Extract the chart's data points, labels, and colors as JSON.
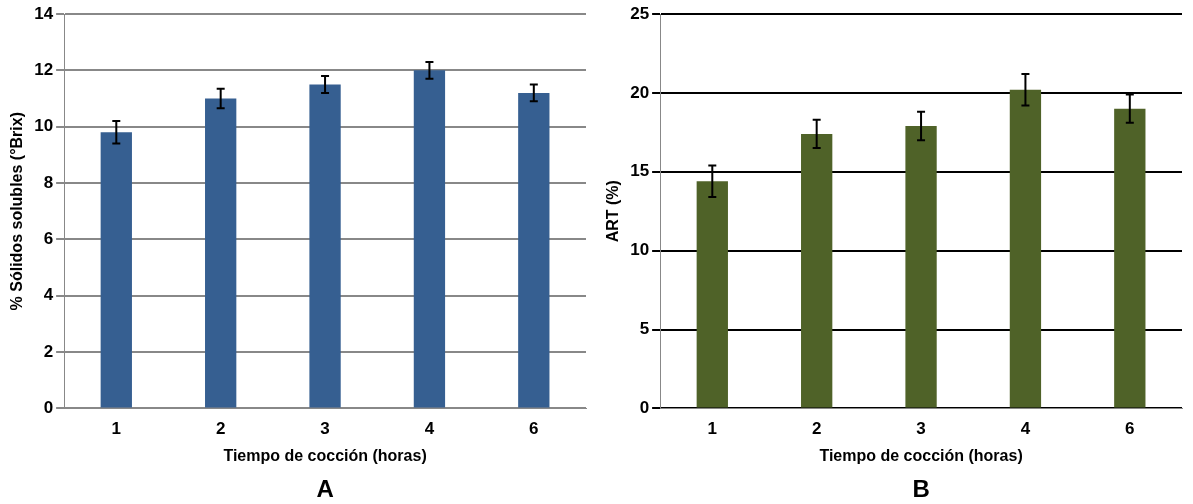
{
  "chart_data": [
    {
      "type": "bar",
      "xlabel": "Tiempo de cocción (horas)",
      "ylabel": "% Sólidos solubles (°Brix)",
      "categories": [
        "1",
        "2",
        "3",
        "4",
        "6"
      ],
      "values": [
        9.8,
        11.0,
        11.5,
        12.0,
        11.2
      ],
      "errors": [
        0.4,
        0.35,
        0.3,
        0.3,
        0.3
      ],
      "color": "#365f91",
      "ylim": [
        0,
        14
      ],
      "yticks": [
        0,
        2,
        4,
        6,
        8,
        10,
        12,
        14
      ],
      "grid": "y",
      "annotations": [
        "A"
      ]
    },
    {
      "type": "bar",
      "xlabel": "Tiempo de cocción (horas)",
      "ylabel": "ART (%)",
      "categories": [
        "1",
        "2",
        "3",
        "4",
        "6"
      ],
      "values": [
        14.4,
        17.4,
        17.9,
        20.2,
        19.0
      ],
      "errors": [
        1.0,
        0.9,
        0.9,
        1.0,
        0.9
      ],
      "color": "#4f6228",
      "ylim": [
        0,
        25
      ],
      "yticks": [
        0,
        5,
        10,
        15,
        20,
        25
      ],
      "grid": "y",
      "annotations": [
        "B"
      ]
    }
  ]
}
